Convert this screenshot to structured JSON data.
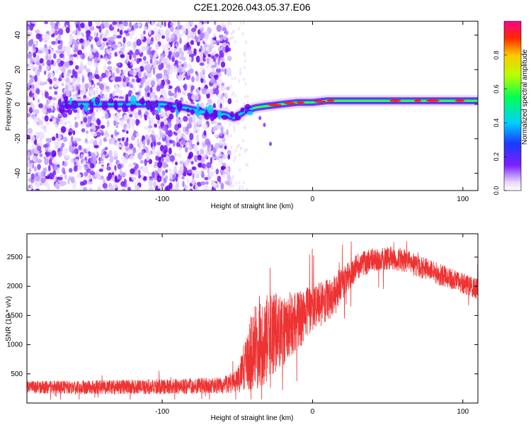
{
  "title": "C2E1.2026.043.05.37.E06",
  "colors": {
    "line": "#ee3333",
    "axis": "#000000",
    "purple": "#7a1fff"
  },
  "chart_data": [
    {
      "type": "heatmap",
      "xlabel": "Height of straight line (km)",
      "ylabel": "Frequency (Hz)",
      "xlim": [
        -190,
        110
      ],
      "ylim": [
        -50,
        48
      ],
      "xticks": [
        -100,
        0,
        100
      ],
      "xtick_labels": [
        "-100",
        "0",
        "100"
      ],
      "yticks": [
        -40,
        -20,
        0,
        20,
        40
      ],
      "ytick_labels": [
        "-40",
        "-20",
        "0",
        "20",
        "40"
      ],
      "colorbar": {
        "label": "Normalized spectral amplitude",
        "range": [
          0.0,
          1.0
        ],
        "ticks": [
          0.0,
          0.2,
          0.4,
          0.6,
          0.8
        ],
        "tick_labels": [
          "0.0",
          "0.2",
          "0.4",
          "0.6",
          "0.8"
        ]
      },
      "ridge": {
        "x": [
          -165,
          -140,
          -120,
          -100,
          -85,
          -70,
          -58,
          -52,
          -45,
          -38,
          -30,
          -20,
          -10,
          0,
          10,
          20,
          40,
          60,
          80,
          100,
          110
        ],
        "freq": [
          0,
          0,
          0,
          0,
          -2,
          -5,
          -6,
          -8,
          -4,
          -2,
          -1,
          0,
          1,
          1,
          2,
          2,
          2,
          2,
          2,
          2,
          2
        ]
      },
      "noise_region_x": [
        -190,
        -55
      ]
    },
    {
      "type": "line",
      "xlabel": "Height of straight line (km)",
      "ylabel": "SNR (10 * v/v)",
      "xlim": [
        -190,
        110
      ],
      "ylim": [
        0,
        2900
      ],
      "xticks": [
        -100,
        0,
        100
      ],
      "xtick_labels": [
        "-100",
        "0",
        "100"
      ],
      "yticks": [
        500,
        1000,
        1500,
        2000,
        2500
      ],
      "ytick_labels": [
        "500",
        "1000",
        "1500",
        "2000",
        "2500"
      ],
      "series": [
        {
          "name": "SNR",
          "x": [
            -190,
            -150,
            -100,
            -60,
            -50,
            -45,
            -40,
            -35,
            -30,
            -25,
            -20,
            -15,
            -10,
            -5,
            0,
            5,
            10,
            20,
            30,
            40,
            50,
            60,
            70,
            80,
            90,
            100,
            110
          ],
          "mean": [
            270,
            270,
            280,
            300,
            380,
            650,
            900,
            1050,
            1100,
            1200,
            1250,
            1350,
            1400,
            1500,
            1650,
            1700,
            1750,
            2050,
            2350,
            2450,
            2480,
            2450,
            2350,
            2250,
            2150,
            2050,
            1950
          ],
          "spread": [
            110,
            120,
            130,
            140,
            200,
            450,
            700,
            800,
            750,
            700,
            650,
            550,
            500,
            450,
            400,
            400,
            380,
            280,
            220,
            200,
            200,
            200,
            190,
            190,
            180,
            180,
            180
          ]
        }
      ]
    }
  ]
}
